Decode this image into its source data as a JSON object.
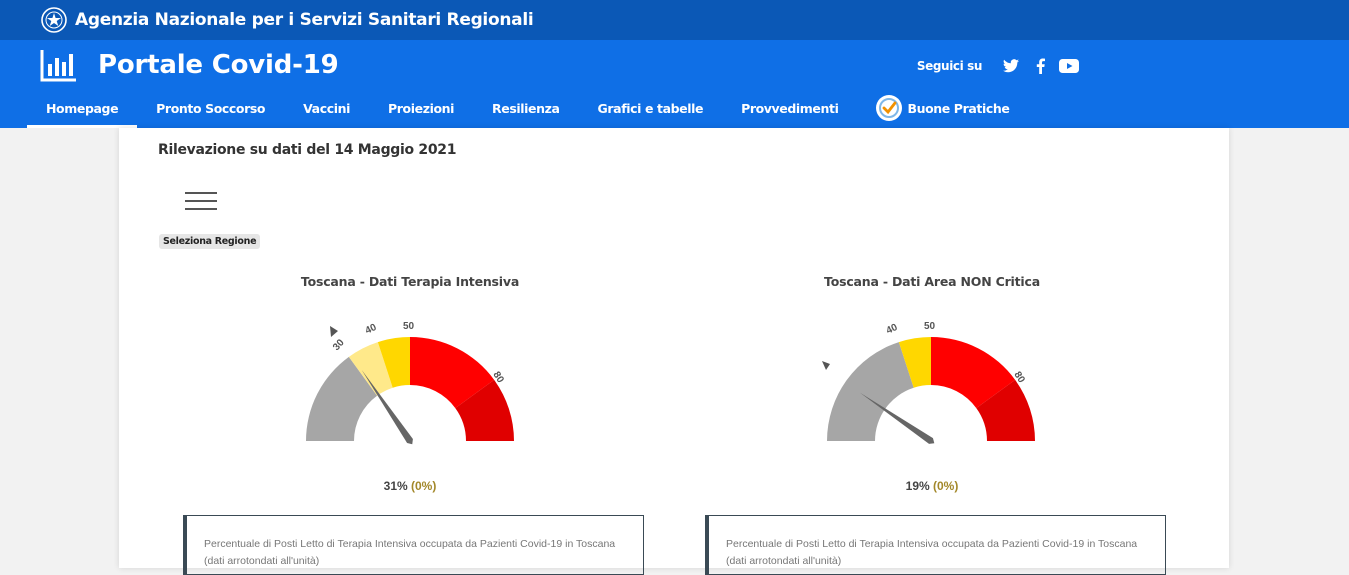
{
  "agency": {
    "name": "Agenzia Nazionale per i Servizi Sanitari Regionali"
  },
  "portal": {
    "title": "Portale Covid-19"
  },
  "social": {
    "follow_label": "Seguici su",
    "icons": [
      "twitter-icon",
      "facebook-icon",
      "youtube-icon"
    ]
  },
  "nav": {
    "items": [
      {
        "label": "Homepage",
        "active": true
      },
      {
        "label": "Pronto Soccorso"
      },
      {
        "label": "Vaccini"
      },
      {
        "label": "Proiezioni"
      },
      {
        "label": "Resilienza"
      },
      {
        "label": "Grafici e tabelle"
      },
      {
        "label": "Provvedimenti"
      },
      {
        "label": "Buone Pratiche",
        "icon": "check-badge-icon"
      }
    ]
  },
  "page": {
    "survey_date": "Rilevazione su dati del 14 Maggio 2021",
    "region_select_label": "Seleziona Regione"
  },
  "gauges": [
    {
      "title": "Toscana - Dati Terapia Intensiva",
      "value_text": "31%",
      "delta_text": "(0%)",
      "value": 31,
      "ticks": [
        "30",
        "40",
        "50",
        "80"
      ],
      "description_line1": "Percentuale di Posti Letto di Terapia Intensiva occupata da Pazienti Covid-19 in Toscana",
      "description_line2": "(dati arrotondati all'unità)"
    },
    {
      "title": "Toscana - Dati Area NON Critica",
      "value_text": "19%",
      "delta_text": "(0%)",
      "value": 19,
      "ticks": [
        "40",
        "50",
        "80"
      ],
      "description_line1": "Percentuale di Posti Letto di Terapia Intensiva occupata da Pazienti Covid-19 in Toscana",
      "description_line2": "(dati arrotondati all'unità)"
    }
  ],
  "colors": {
    "top_bar": "#0b58b6",
    "header": "#0f6fe6",
    "gauge_grey": "#a6a6a6",
    "gauge_light_yellow": "#ffe98a",
    "gauge_yellow": "#ffd700",
    "gauge_red": "#ff0000",
    "gauge_dark_red": "#e00000",
    "needle": "#666666"
  }
}
